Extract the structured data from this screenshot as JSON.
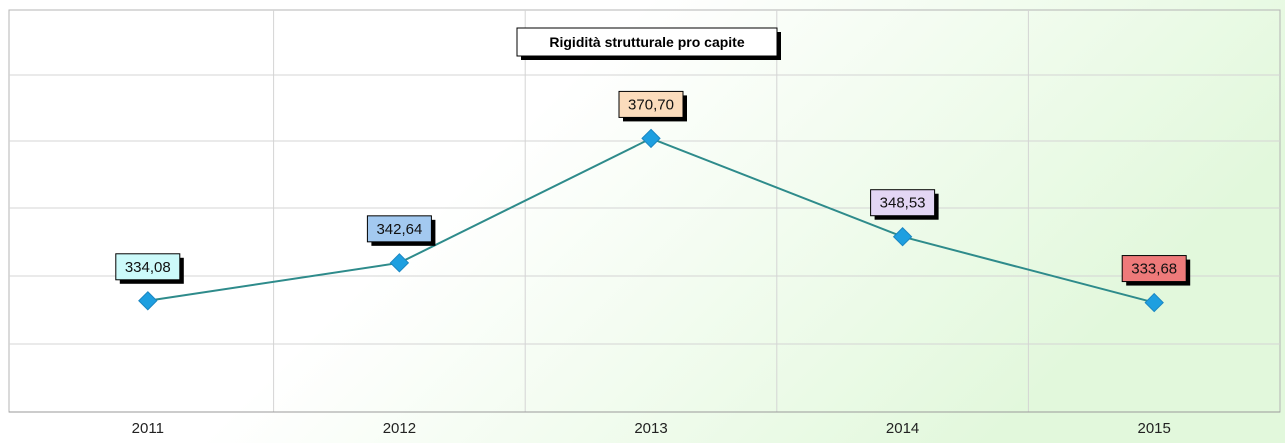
{
  "chart_data": {
    "type": "line",
    "title": "Rigidità strutturale pro capite",
    "categories": [
      "2011",
      "2012",
      "2013",
      "2014",
      "2015"
    ],
    "series": [
      {
        "values": [
          334.08,
          342.64,
          370.7,
          348.53,
          333.68
        ],
        "labels": [
          "334,08",
          "342,64",
          "370,70",
          "348,53",
          "333,68"
        ],
        "line_color": "#2e8b8b",
        "marker_color": "#1e9fe0",
        "label_colors": [
          "#ccfafa",
          "#a3c9f0",
          "#fbdcbc",
          "#e3d6f4",
          "#ee7a7a"
        ]
      }
    ],
    "ylim": [
      309,
      385
    ],
    "grid": true,
    "legend": "none"
  },
  "colors": {
    "background_top": "#ffffff",
    "background_gradient": "#e2f8dc",
    "gridline": "#d4d4d4",
    "border": "#b4b4b4"
  }
}
